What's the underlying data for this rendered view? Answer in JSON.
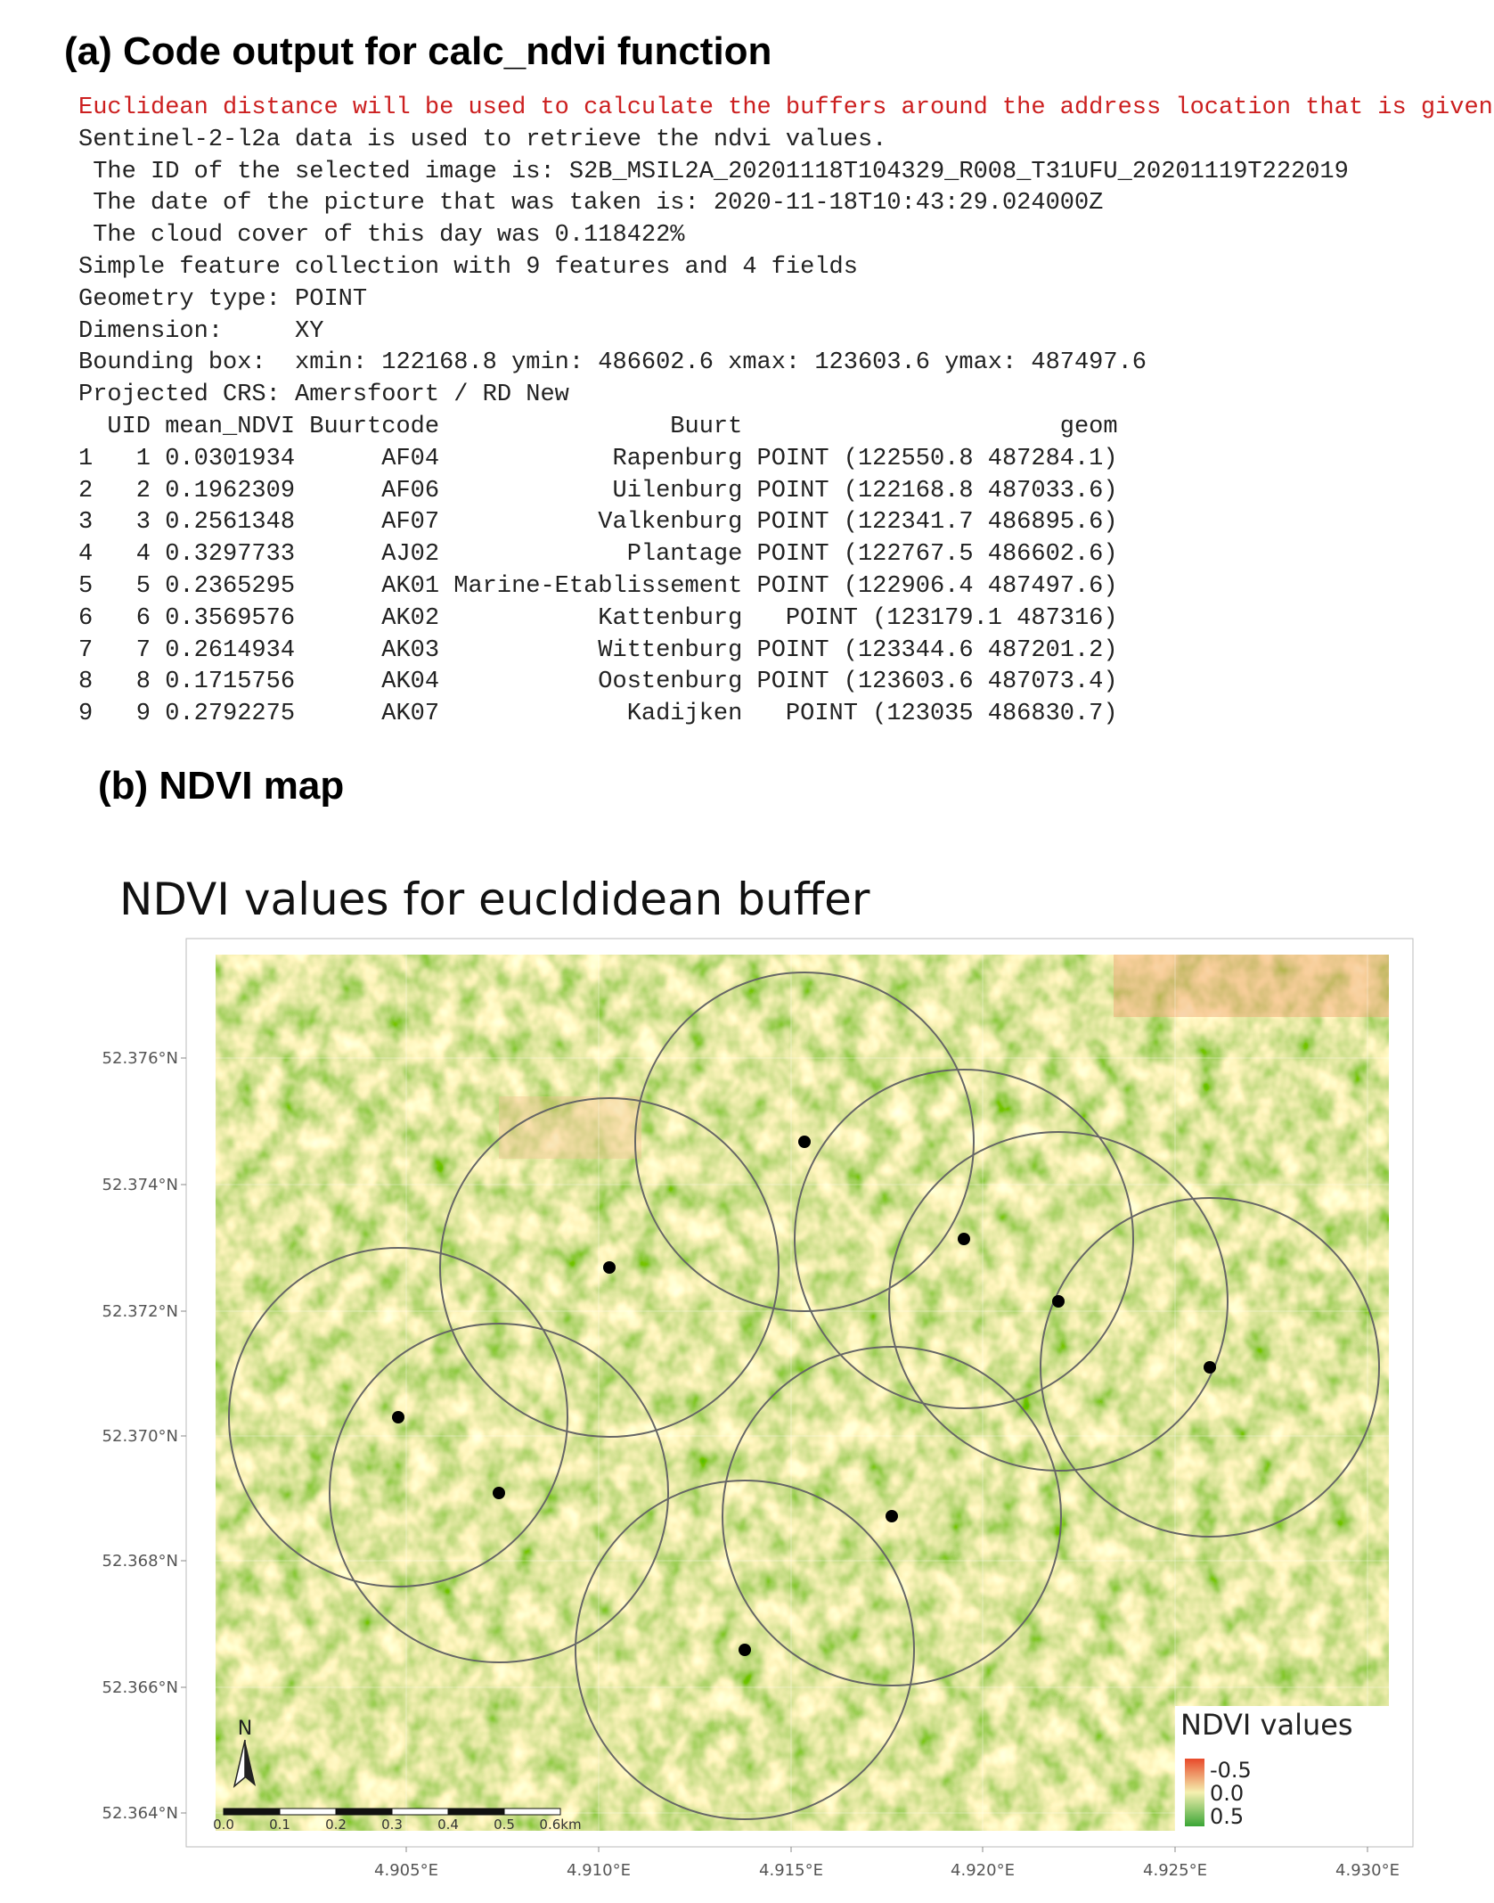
{
  "code_section": {
    "heading": "(a) Code output for calc_ndvi function",
    "lines": [
      "Euclidean distance will be used to calculate the buffers around the address location that is given",
      "Sentinel-2-l2a data is used to retrieve the ndvi values.",
      " The ID of the selected image is: S2B_MSIL2A_20201118T104329_R008_T31UFU_20201119T222019",
      " The date of the picture that was taken is: 2020-11-18T10:43:29.024000Z",
      " The cloud cover of this day was 0.118422%",
      "Simple feature collection with 9 features and 4 fields",
      "Geometry type: POINT",
      "Dimension:     XY",
      "Bounding box:  xmin: 122168.8 ymin: 486602.6 xmax: 123603.6 ymax: 487497.6",
      "Projected CRS: Amersfoort / RD New"
    ],
    "table": {
      "header": "  UID mean_NDVI Buurtcode                Buurt                      geom",
      "rows": [
        "1   1 0.0301934      AF04            Rapenburg POINT (122550.8 487284.1)",
        "2   2 0.1962309      AF06            Uilenburg POINT (122168.8 487033.6)",
        "3   3 0.2561348      AF07           Valkenburg POINT (122341.7 486895.6)",
        "4   4 0.3297733      AJ02             Plantage POINT (122767.5 486602.6)",
        "5   5 0.2365295      AK01 Marine-Etablissement POINT (122906.4 487497.6)",
        "6   6 0.3569576      AK02           Kattenburg   POINT (123179.1 487316)",
        "7   7 0.2614934      AK03           Wittenburg POINT (123344.6 487201.2)",
        "8   8 0.1715756      AK04           Oostenburg POINT (123603.6 487073.4)",
        "9   9 0.2792275      AK07             Kadijken   POINT (123035 486830.7)"
      ]
    }
  },
  "map_section": {
    "heading": "(b) NDVI map",
    "title": "NDVI values for eucldidean buffer",
    "yticks": [
      "52.376°N",
      "52.374°N",
      "52.372°N",
      "52.370°N",
      "52.368°N",
      "52.366°N",
      "52.364°N"
    ],
    "xticks": [
      "4.905°E",
      "4.910°E",
      "4.915°E",
      "4.920°E",
      "4.925°E",
      "4.930°E"
    ],
    "legend": {
      "title": "NDVI values",
      "labels": [
        "-0.5",
        "0.0",
        "0.5"
      ]
    },
    "north_arrow": "N",
    "scale_bar": [
      "0.0",
      "0.1",
      "0.2",
      "0.3",
      "0.4",
      "0.5",
      "0.6km"
    ]
  }
}
